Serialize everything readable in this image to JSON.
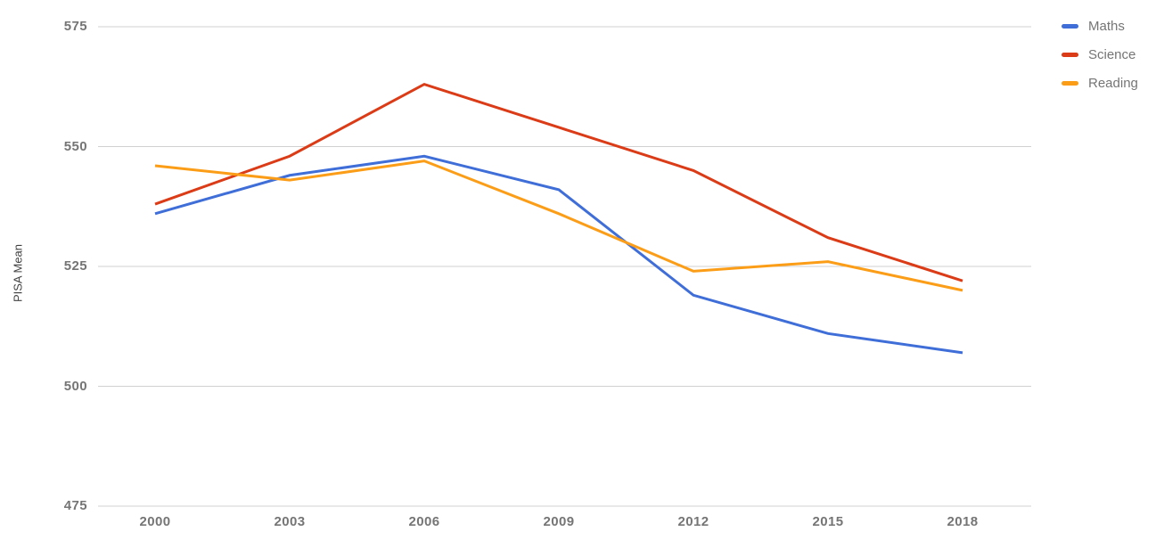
{
  "chart_data": {
    "type": "line",
    "title": "",
    "xlabel": "",
    "ylabel": "PISA Mean",
    "categories": [
      "2000",
      "2003",
      "2006",
      "2009",
      "2012",
      "2015",
      "2018"
    ],
    "series": [
      {
        "name": "Maths",
        "color": "#3F6ED8",
        "values": [
          536,
          544,
          548,
          541,
          519,
          511,
          507
        ]
      },
      {
        "name": "Science",
        "color": "#DB3B16",
        "values": [
          538,
          548,
          563,
          554,
          545,
          531,
          522
        ]
      },
      {
        "name": "Reading",
        "color": "#FB9D17",
        "values": [
          546,
          543,
          547,
          536,
          524,
          526,
          520
        ]
      }
    ],
    "ylim": [
      475,
      575
    ],
    "yticks": [
      475,
      500,
      525,
      550,
      575
    ],
    "grid": true,
    "legend_position": "right-top",
    "line_width": 3,
    "gridline_color": "#d0d0d0",
    "axis_text_color": "#757575",
    "ylabel_color": "#424242",
    "background_color": "#ffffff"
  }
}
